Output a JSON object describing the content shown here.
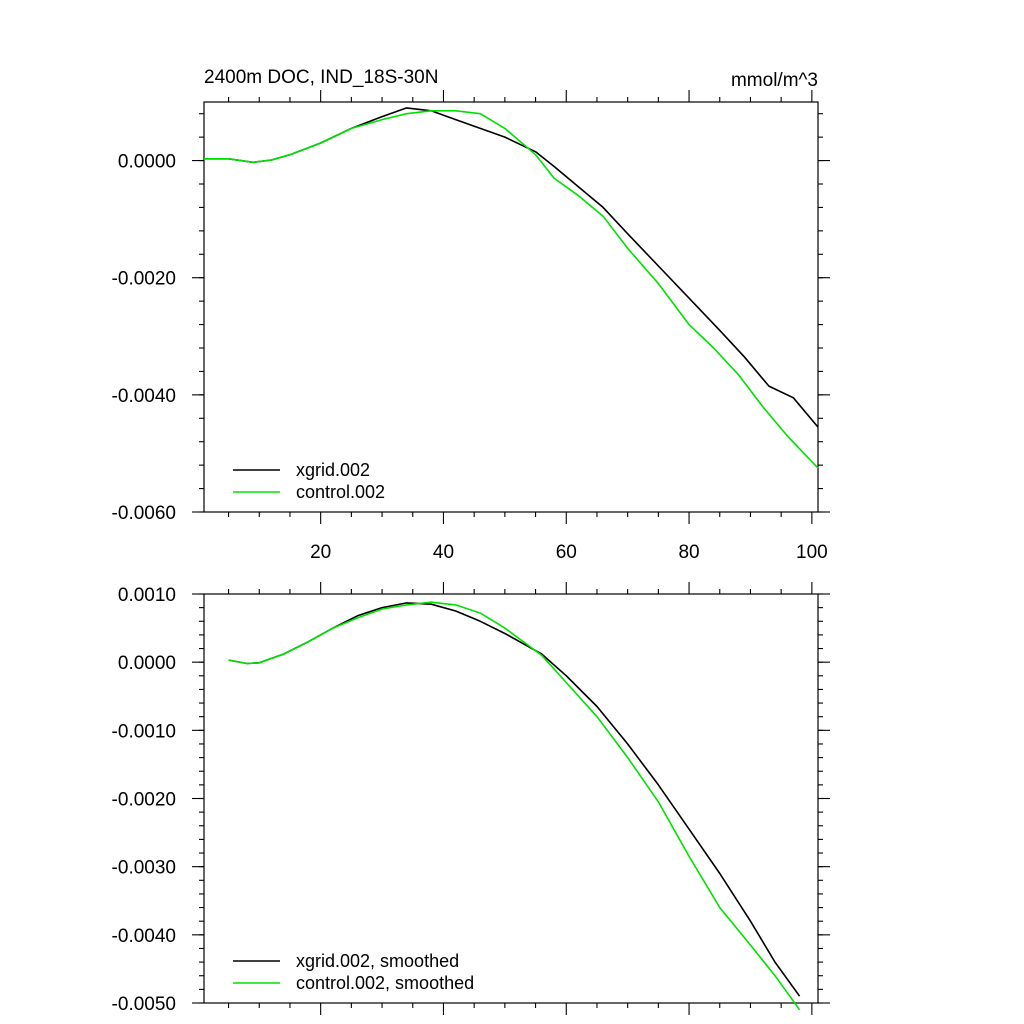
{
  "chart_data": [
    {
      "type": "line",
      "title": "2400m DOC, IND_18S-30N",
      "units": "mmol/m^3",
      "xlim": [
        1,
        101
      ],
      "ylim": [
        -0.006,
        0.001
      ],
      "x_ticks": [
        20,
        40,
        60,
        80,
        100
      ],
      "y_ticks": [
        0.0,
        -0.002,
        -0.004,
        -0.006
      ],
      "y_tick_labels": [
        "0.0000",
        "-0.0020",
        "-0.0040",
        "-0.0060"
      ],
      "legend_position": "bottom-left",
      "series": [
        {
          "name": "xgrid.002",
          "color": "#000000",
          "x": [
            1,
            5,
            9,
            12,
            15,
            20,
            25,
            30,
            34,
            38,
            42,
            46,
            50,
            55,
            58,
            62,
            66,
            70,
            75,
            80,
            85,
            89,
            93,
            97,
            101
          ],
          "y": [
            3e-05,
            3e-05,
            -3e-05,
            1e-05,
            0.0001,
            0.0003,
            0.00055,
            0.00075,
            0.0009,
            0.00085,
            0.0007,
            0.00055,
            0.0004,
            0.00015,
            -0.0001,
            -0.00045,
            -0.0008,
            -0.00125,
            -0.0018,
            -0.00235,
            -0.0029,
            -0.00335,
            -0.00385,
            -0.00405,
            -0.00455
          ]
        },
        {
          "name": "control.002",
          "color": "#00e000",
          "x": [
            1,
            5,
            9,
            12,
            15,
            20,
            25,
            30,
            34,
            38,
            42,
            46,
            50,
            55,
            58,
            62,
            66,
            70,
            75,
            80,
            84,
            88,
            92,
            96,
            101
          ],
          "y": [
            3e-05,
            3e-05,
            -3e-05,
            1e-05,
            0.0001,
            0.0003,
            0.00055,
            0.0007,
            0.0008,
            0.00085,
            0.00085,
            0.0008,
            0.00055,
            0.0001,
            -0.0003,
            -0.0006,
            -0.00095,
            -0.0015,
            -0.0021,
            -0.0028,
            -0.0032,
            -0.00365,
            -0.0042,
            -0.0047,
            -0.00525
          ]
        }
      ]
    },
    {
      "type": "line",
      "title": "",
      "units": "",
      "xlim": [
        1,
        101
      ],
      "ylim": [
        -0.005,
        0.001
      ],
      "x_ticks": [
        20,
        40,
        60,
        80,
        100
      ],
      "y_ticks": [
        0.001,
        0.0,
        -0.001,
        -0.002,
        -0.003,
        -0.004,
        -0.005
      ],
      "y_tick_labels": [
        "0.0010",
        "0.0000",
        "-0.0010",
        "-0.0020",
        "-0.0030",
        "-0.0040",
        "-0.0050"
      ],
      "legend_position": "bottom-left",
      "series": [
        {
          "name": "xgrid.002, smoothed",
          "color": "#000000",
          "x": [
            5,
            8,
            10,
            14,
            18,
            22,
            26,
            30,
            34,
            38,
            42,
            46,
            50,
            56,
            60,
            65,
            70,
            75,
            80,
            85,
            90,
            94,
            98
          ],
          "y": [
            3e-05,
            -2e-05,
            -1e-05,
            0.00012,
            0.0003,
            0.0005,
            0.00068,
            0.0008,
            0.00087,
            0.00085,
            0.00075,
            0.0006,
            0.00042,
            0.00012,
            -0.0002,
            -0.00065,
            -0.0012,
            -0.0018,
            -0.00245,
            -0.0031,
            -0.0038,
            -0.0044,
            -0.0049
          ]
        },
        {
          "name": "control.002, smoothed",
          "color": "#00e000",
          "x": [
            5,
            8,
            10,
            14,
            18,
            22,
            26,
            30,
            34,
            38,
            42,
            46,
            50,
            56,
            60,
            65,
            70,
            75,
            80,
            85,
            90,
            94,
            98
          ],
          "y": [
            3e-05,
            -2e-05,
            -1e-05,
            0.00012,
            0.0003,
            0.0005,
            0.00065,
            0.00078,
            0.00084,
            0.00088,
            0.00084,
            0.00072,
            0.0005,
            0.0001,
            -0.0003,
            -0.0008,
            -0.0014,
            -0.00205,
            -0.00285,
            -0.0036,
            -0.00415,
            -0.0046,
            -0.0051
          ]
        }
      ]
    }
  ]
}
